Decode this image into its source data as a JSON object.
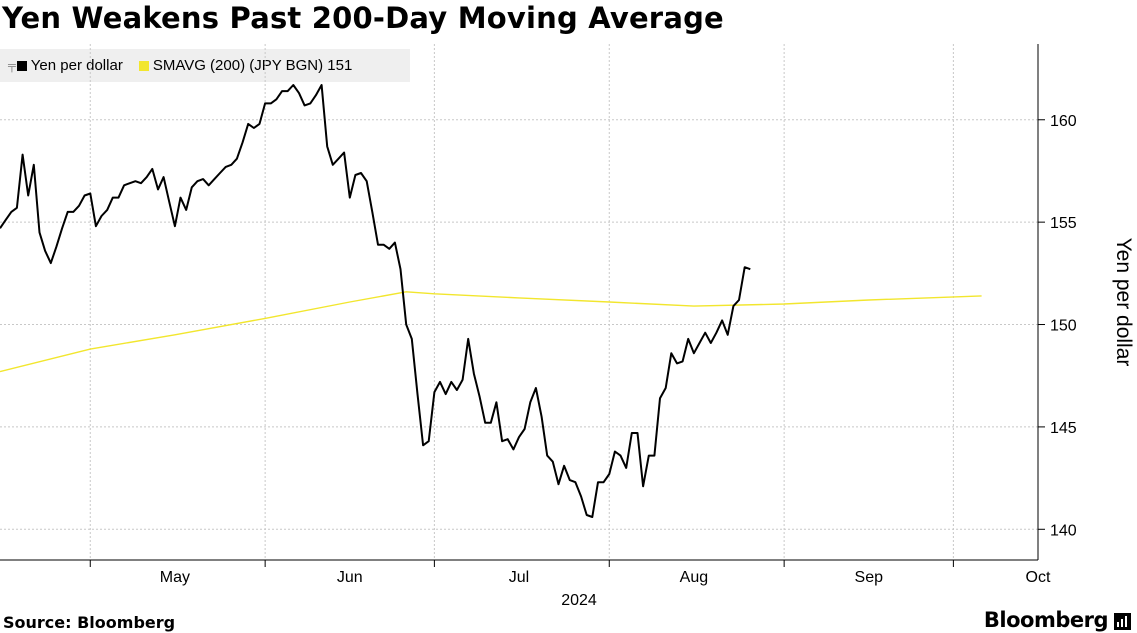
{
  "header": {
    "title": "Yen Weakens Past 200-Day Moving Average"
  },
  "legend": {
    "items": [
      {
        "label": "Yen per dollar",
        "color": "#000000",
        "icon": "candlestick-icon"
      },
      {
        "label": "SMAVG (200) (JPY BGN) 151",
        "color": "#f2e62e"
      }
    ]
  },
  "footer": {
    "source": "Source: Bloomberg",
    "brand": "Bloomberg"
  },
  "chart_data": {
    "type": "line",
    "ylabel": "Yen per dollar",
    "ylim": [
      138.5,
      163.7
    ],
    "yticks": [
      140,
      145,
      150,
      155,
      160
    ],
    "xlim": [
      "2024-04-15",
      "2024-10-16"
    ],
    "x_year_label": "2024",
    "month_ticks": [
      {
        "label": "May",
        "start": "2024-05-01",
        "mid": "2024-05-16"
      },
      {
        "label": "Jun",
        "start": "2024-06-01",
        "mid": "2024-06-16"
      },
      {
        "label": "Jul",
        "start": "2024-07-01",
        "mid": "2024-07-16"
      },
      {
        "label": "Aug",
        "start": "2024-08-01",
        "mid": "2024-08-16"
      },
      {
        "label": "Sep",
        "start": "2024-09-01",
        "mid": "2024-09-16"
      },
      {
        "label": "Oct",
        "start": "2024-10-01",
        "mid": "2024-10-16"
      }
    ],
    "grid": true,
    "legend_position": "top-left",
    "series": [
      {
        "name": "Yen per dollar",
        "color": "#000000",
        "points": [
          [
            "2024-04-15",
            154.7
          ],
          [
            "2024-04-16",
            155.1
          ],
          [
            "2024-04-17",
            155.5
          ],
          [
            "2024-04-18",
            155.7
          ],
          [
            "2024-04-19",
            158.3
          ],
          [
            "2024-04-20",
            156.3
          ],
          [
            "2024-04-21",
            157.8
          ],
          [
            "2024-04-22",
            154.5
          ],
          [
            "2024-04-23",
            153.6
          ],
          [
            "2024-04-24",
            153.0
          ],
          [
            "2024-04-25",
            153.8
          ],
          [
            "2024-04-26",
            154.7
          ],
          [
            "2024-04-27",
            155.5
          ],
          [
            "2024-04-28",
            155.5
          ],
          [
            "2024-04-29",
            155.8
          ],
          [
            "2024-04-30",
            156.3
          ],
          [
            "2024-05-01",
            156.4
          ],
          [
            "2024-05-02",
            154.8
          ],
          [
            "2024-05-03",
            155.3
          ],
          [
            "2024-05-04",
            155.6
          ],
          [
            "2024-05-05",
            156.2
          ],
          [
            "2024-05-06",
            156.2
          ],
          [
            "2024-05-07",
            156.8
          ],
          [
            "2024-05-08",
            156.9
          ],
          [
            "2024-05-09",
            157.0
          ],
          [
            "2024-05-10",
            156.9
          ],
          [
            "2024-05-11",
            157.2
          ],
          [
            "2024-05-12",
            157.6
          ],
          [
            "2024-05-13",
            156.6
          ],
          [
            "2024-05-14",
            157.2
          ],
          [
            "2024-05-15",
            156.0
          ],
          [
            "2024-05-16",
            154.8
          ],
          [
            "2024-05-17",
            156.2
          ],
          [
            "2024-05-18",
            155.6
          ],
          [
            "2024-05-19",
            156.7
          ],
          [
            "2024-05-20",
            157.0
          ],
          [
            "2024-05-21",
            157.1
          ],
          [
            "2024-05-22",
            156.8
          ],
          [
            "2024-05-23",
            157.1
          ],
          [
            "2024-05-24",
            157.4
          ],
          [
            "2024-05-25",
            157.7
          ],
          [
            "2024-05-26",
            157.8
          ],
          [
            "2024-05-27",
            158.1
          ],
          [
            "2024-05-28",
            158.9
          ],
          [
            "2024-05-29",
            159.8
          ],
          [
            "2024-05-30",
            159.6
          ],
          [
            "2024-05-31",
            159.8
          ],
          [
            "2024-06-01",
            160.8
          ],
          [
            "2024-06-02",
            160.8
          ],
          [
            "2024-06-03",
            161.0
          ],
          [
            "2024-06-04",
            161.4
          ],
          [
            "2024-06-05",
            161.4
          ],
          [
            "2024-06-06",
            161.7
          ],
          [
            "2024-06-07",
            161.3
          ],
          [
            "2024-06-08",
            160.7
          ],
          [
            "2024-06-09",
            160.8
          ],
          [
            "2024-06-10",
            161.2
          ],
          [
            "2024-06-11",
            161.7
          ],
          [
            "2024-06-12",
            158.7
          ],
          [
            "2024-06-13",
            157.8
          ],
          [
            "2024-06-14",
            158.1
          ],
          [
            "2024-06-15",
            158.4
          ],
          [
            "2024-06-16",
            156.2
          ],
          [
            "2024-06-17",
            157.3
          ],
          [
            "2024-06-18",
            157.4
          ],
          [
            "2024-06-19",
            157.0
          ],
          [
            "2024-06-20",
            155.5
          ],
          [
            "2024-06-21",
            153.9
          ],
          [
            "2024-06-22",
            153.9
          ],
          [
            "2024-06-23",
            153.7
          ],
          [
            "2024-06-24",
            154.0
          ],
          [
            "2024-06-25",
            152.7
          ],
          [
            "2024-06-26",
            150.0
          ],
          [
            "2024-06-27",
            149.3
          ],
          [
            "2024-06-28",
            146.6
          ],
          [
            "2024-06-29",
            144.1
          ],
          [
            "2024-06-30",
            144.3
          ],
          [
            "2024-07-01",
            146.7
          ],
          [
            "2024-07-02",
            147.2
          ],
          [
            "2024-07-03",
            146.6
          ],
          [
            "2024-07-04",
            147.2
          ],
          [
            "2024-07-05",
            146.8
          ],
          [
            "2024-07-06",
            147.3
          ],
          [
            "2024-07-07",
            149.3
          ],
          [
            "2024-07-08",
            147.6
          ],
          [
            "2024-07-09",
            146.5
          ],
          [
            "2024-07-10",
            145.2
          ],
          [
            "2024-07-11",
            145.2
          ],
          [
            "2024-07-12",
            146.2
          ],
          [
            "2024-07-13",
            144.3
          ],
          [
            "2024-07-14",
            144.4
          ],
          [
            "2024-07-15",
            143.9
          ],
          [
            "2024-07-16",
            144.5
          ],
          [
            "2024-07-17",
            144.9
          ],
          [
            "2024-07-18",
            146.2
          ],
          [
            "2024-07-19",
            146.9
          ],
          [
            "2024-07-20",
            145.5
          ],
          [
            "2024-07-21",
            143.6
          ],
          [
            "2024-07-22",
            143.3
          ],
          [
            "2024-07-23",
            142.2
          ],
          [
            "2024-07-24",
            143.1
          ],
          [
            "2024-07-25",
            142.4
          ],
          [
            "2024-07-26",
            142.3
          ],
          [
            "2024-07-27",
            141.6
          ],
          [
            "2024-07-28",
            140.7
          ],
          [
            "2024-07-29",
            140.6
          ],
          [
            "2024-07-30",
            142.3
          ],
          [
            "2024-07-31",
            142.3
          ],
          [
            "2024-08-01",
            142.7
          ],
          [
            "2024-08-02",
            143.8
          ],
          [
            "2024-08-03",
            143.6
          ],
          [
            "2024-08-04",
            143.0
          ],
          [
            "2024-08-05",
            144.7
          ],
          [
            "2024-08-06",
            144.7
          ],
          [
            "2024-08-07",
            142.1
          ],
          [
            "2024-08-08",
            143.6
          ],
          [
            "2024-08-09",
            143.6
          ],
          [
            "2024-08-10",
            146.4
          ],
          [
            "2024-08-11",
            146.9
          ],
          [
            "2024-08-12",
            148.6
          ],
          [
            "2024-08-13",
            148.1
          ],
          [
            "2024-08-14",
            148.2
          ],
          [
            "2024-08-15",
            149.3
          ],
          [
            "2024-08-16",
            148.6
          ],
          [
            "2024-08-17",
            149.1
          ],
          [
            "2024-08-18",
            149.6
          ],
          [
            "2024-08-19",
            149.1
          ],
          [
            "2024-08-20",
            149.6
          ],
          [
            "2024-08-21",
            150.2
          ],
          [
            "2024-08-22",
            149.5
          ],
          [
            "2024-08-23",
            150.9
          ],
          [
            "2024-08-24",
            151.2
          ],
          [
            "2024-08-25",
            152.8
          ],
          [
            "2024-08-26",
            152.7
          ]
        ]
      },
      {
        "name": "SMAVG (200) (JPY BGN) 151",
        "color": "#f2e62e",
        "points": [
          [
            "2024-04-15",
            147.7
          ],
          [
            "2024-05-01",
            148.8
          ],
          [
            "2024-05-16",
            149.5
          ],
          [
            "2024-06-01",
            150.3
          ],
          [
            "2024-06-16",
            151.1
          ],
          [
            "2024-06-26",
            151.6
          ],
          [
            "2024-07-01",
            151.5
          ],
          [
            "2024-07-16",
            151.3
          ],
          [
            "2024-08-01",
            151.1
          ],
          [
            "2024-08-16",
            150.9
          ],
          [
            "2024-09-01",
            151.0
          ],
          [
            "2024-09-16",
            151.2
          ],
          [
            "2024-10-06",
            151.4
          ]
        ]
      }
    ]
  }
}
